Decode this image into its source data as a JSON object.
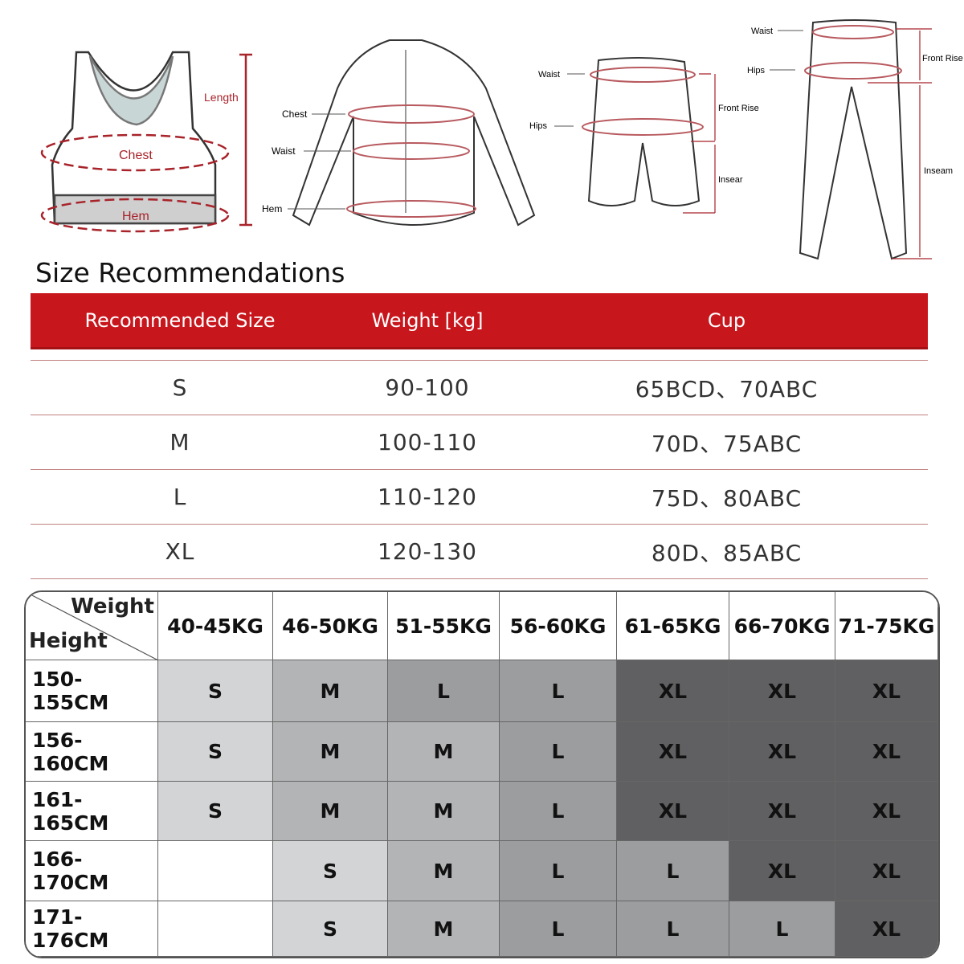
{
  "illustrations": {
    "bra": {
      "length": "Length",
      "chest": "Chest",
      "hem": "Hem"
    },
    "jersey": {
      "chest": "Chest",
      "waist": "Waist",
      "hem": "Hem"
    },
    "shorts": {
      "waist": "Waist",
      "hips": "Hips",
      "front_rise": "Front Rise",
      "inseam": "Insear"
    },
    "tights": {
      "waist": "Waist",
      "hips": "Hips",
      "front_rise": "Front Rise",
      "inseam": "Inseam"
    }
  },
  "title": "Size Recommendations",
  "recommendations": {
    "headers": [
      "Recommended Size",
      "Weight [kg]",
      "Cup"
    ],
    "rows": [
      [
        "S",
        "90-100",
        "65BCD、70ABC"
      ],
      [
        "M",
        "100-110",
        "70D、75ABC"
      ],
      [
        "L",
        "110-120",
        "75D、80ABC"
      ],
      [
        "XL",
        "120-130",
        "80D、85ABC"
      ]
    ],
    "header_color": "#c8161d"
  },
  "size_grid": {
    "corner_top": "Weight",
    "corner_bottom": "Height",
    "columns": [
      "40-45KG",
      "46-50KG",
      "51-55KG",
      "56-60KG",
      "61-65KG",
      "66-70KG",
      "71-75KG"
    ],
    "rows": [
      {
        "height": "150-155CM",
        "sizes": [
          "S",
          "M",
          "L",
          "L",
          "XL",
          "XL",
          "XL"
        ]
      },
      {
        "height": "156-160CM",
        "sizes": [
          "S",
          "M",
          "M",
          "L",
          "XL",
          "XL",
          "XL"
        ]
      },
      {
        "height": "161-165CM",
        "sizes": [
          "S",
          "M",
          "M",
          "L",
          "XL",
          "XL",
          "XL"
        ]
      },
      {
        "height": "166-170CM",
        "sizes": [
          "",
          "S",
          "M",
          "L",
          "L",
          "XL",
          "XL"
        ]
      },
      {
        "height": "171-176CM",
        "sizes": [
          "",
          "S",
          "M",
          "L",
          "L",
          "L",
          "XL"
        ]
      }
    ],
    "size_colors": {
      "S": "#d3d4d6",
      "M": "#b3b4b6",
      "L": "#9c9d9f",
      "XL": "#606062",
      "": "#ffffff"
    }
  }
}
